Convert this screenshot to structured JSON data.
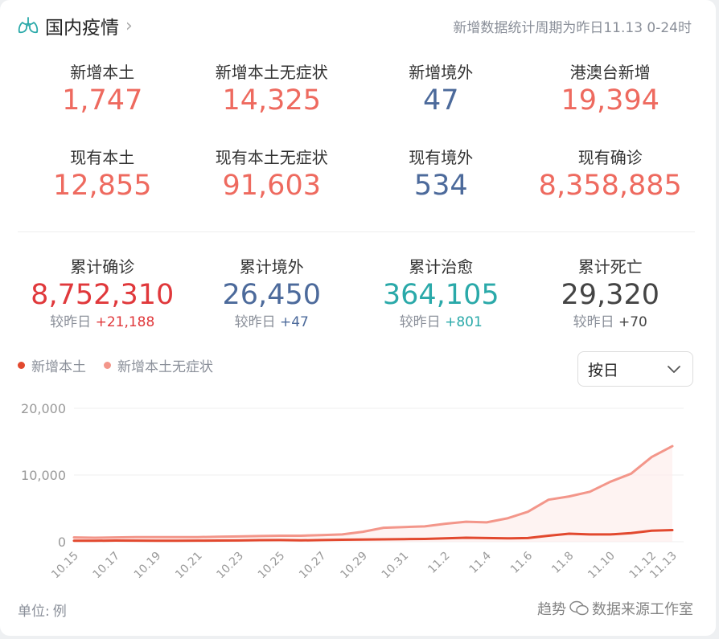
{
  "header": {
    "title": "国内疫情",
    "chevron": "›",
    "period_note": "新增数据统计周期为昨日11.13 0-24时"
  },
  "stats_row1": [
    {
      "label": "新增本土",
      "value": "1,747",
      "color": "#ee6a5f"
    },
    {
      "label": "新增本土无症状",
      "value": "14,325",
      "color": "#ee6a5f"
    },
    {
      "label": "新增境外",
      "value": "47",
      "color": "#4c6a9b"
    },
    {
      "label": "港澳台新增",
      "value": "19,394",
      "color": "#ee6a5f"
    }
  ],
  "stats_row2": [
    {
      "label": "现有本土",
      "value": "12,855",
      "color": "#ee6a5f"
    },
    {
      "label": "现有本土无症状",
      "value": "91,603",
      "color": "#ee6a5f"
    },
    {
      "label": "现有境外",
      "value": "534",
      "color": "#4c6a9b"
    },
    {
      "label": "现有确诊",
      "value": "8,358,885",
      "color": "#ee6a5f"
    }
  ],
  "stats_cumulative": [
    {
      "label": "累计确诊",
      "value": "8,752,310",
      "color": "#e0383b",
      "compare_label": "较昨日",
      "delta": "+21,188",
      "delta_color": "#e0383b"
    },
    {
      "label": "累计境外",
      "value": "26,450",
      "color": "#4c6a9b",
      "compare_label": "较昨日",
      "delta": "+47",
      "delta_color": "#4c6a9b"
    },
    {
      "label": "累计治愈",
      "value": "364,105",
      "color": "#2aa9a9",
      "compare_label": "较昨日",
      "delta": "+801",
      "delta_color": "#2aa9a9"
    },
    {
      "label": "累计死亡",
      "value": "29,320",
      "color": "#444",
      "compare_label": "较昨日",
      "delta": "+70",
      "delta_color": "#444"
    }
  ],
  "period_selector": {
    "value": "按日"
  },
  "footer": {
    "unit_label": "单位:",
    "unit_value": "例",
    "watermark_left": "趋势",
    "watermark_right": "数据来源工作室"
  },
  "chart_data": {
    "type": "line",
    "x": [
      "10.15",
      "10.16",
      "10.17",
      "10.18",
      "10.19",
      "10.20",
      "10.21",
      "10.22",
      "10.23",
      "10.24",
      "10.25",
      "10.26",
      "10.27",
      "10.28",
      "10.29",
      "10.30",
      "10.31",
      "11.1",
      "11.2",
      "11.3",
      "11.4",
      "11.5",
      "11.6",
      "11.7",
      "11.8",
      "11.9",
      "11.10",
      "11.11",
      "11.12",
      "11.13"
    ],
    "tick_labels": [
      "10.15",
      "10.17",
      "10.19",
      "10.21",
      "10.23",
      "10.25",
      "10.27",
      "10.29",
      "10.31",
      "11.2",
      "11.4",
      "11.6",
      "11.8",
      "11.10",
      "11.12",
      "11.13"
    ],
    "series": [
      {
        "name": "新增本土",
        "color": "#e2492f",
        "values": [
          150,
          150,
          180,
          170,
          160,
          160,
          170,
          180,
          190,
          240,
          250,
          210,
          250,
          300,
          330,
          360,
          400,
          420,
          500,
          600,
          550,
          500,
          560,
          900,
          1200,
          1100,
          1100,
          1300,
          1650,
          1747
        ]
      },
      {
        "name": "新增本土无症状",
        "color": "#f3968a",
        "values": [
          650,
          600,
          650,
          700,
          700,
          700,
          700,
          750,
          800,
          850,
          900,
          900,
          1000,
          1100,
          1500,
          2100,
          2200,
          2300,
          2700,
          3000,
          2900,
          3500,
          4500,
          6300,
          6800,
          7500,
          9000,
          10200,
          12700,
          14325
        ]
      }
    ],
    "yticks": [
      "0",
      "10,000",
      "20,000"
    ],
    "ylim": [
      0,
      20000
    ],
    "grid": true,
    "legend": "top-left"
  }
}
